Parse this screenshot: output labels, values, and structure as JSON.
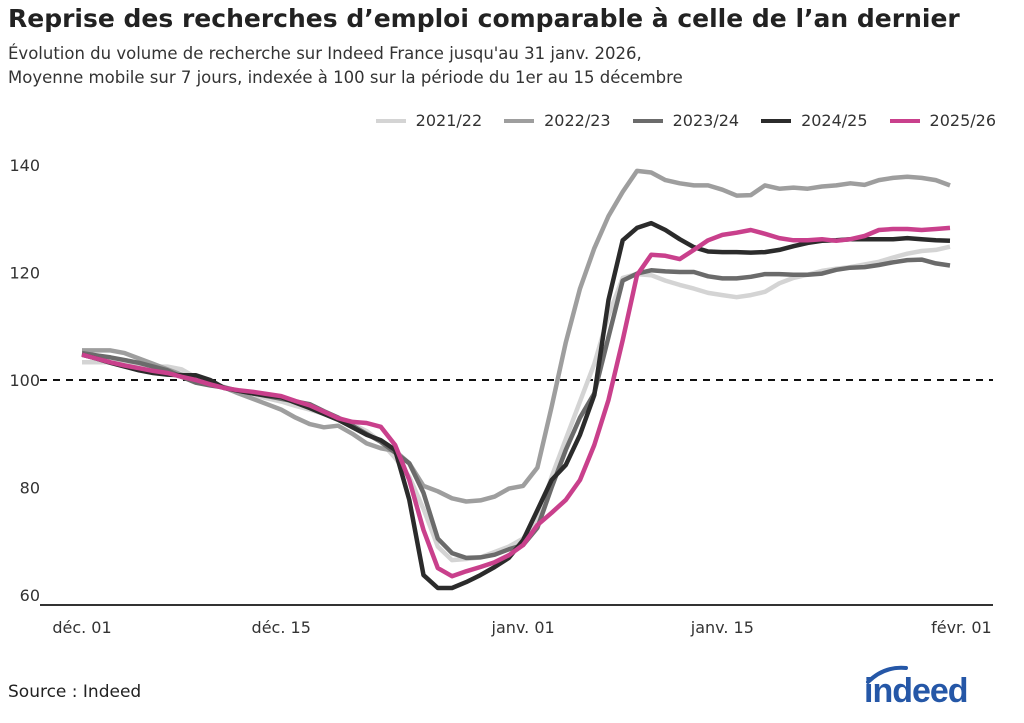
{
  "title": "Reprise des recherches d’emploi comparable à celle de l’an dernier",
  "subtitle_lines": [
    "Évolution du volume de recherche sur Indeed France jusqu'au 31 janv. 2026,",
    "Moyenne mobile sur 7 jours, indexée à 100 sur la période du 1er au 15 décembre"
  ],
  "source": "Source : Indeed",
  "logo_text": "indeed",
  "colors": {
    "brand": "#2557a7"
  },
  "chart_data": {
    "type": "line",
    "title": "Reprise des recherches d’emploi comparable à celle de l’an dernier",
    "xlabel": "",
    "ylabel": "",
    "ylim": [
      58,
      142
    ],
    "yticks": [
      60,
      80,
      100,
      120,
      140
    ],
    "ytick_labels": [
      "60",
      "80",
      "100",
      "120",
      "140"
    ],
    "xtick_labels": [
      "déc. 01",
      "déc. 15",
      "janv. 01",
      "janv. 15",
      "févr. 01"
    ],
    "xtick_dates": [
      "12-01",
      "12-15",
      "01-01",
      "01-15",
      "02-01"
    ],
    "reference_line": {
      "y": 100,
      "style": "dashed"
    },
    "grid": false,
    "legend_position": "top-right",
    "x": [
      "12-01",
      "12-02",
      "12-03",
      "12-04",
      "12-05",
      "12-06",
      "12-07",
      "12-08",
      "12-09",
      "12-10",
      "12-11",
      "12-12",
      "12-13",
      "12-14",
      "12-15",
      "12-16",
      "12-17",
      "12-18",
      "12-19",
      "12-20",
      "12-21",
      "12-22",
      "12-23",
      "12-24",
      "12-25",
      "12-26",
      "12-27",
      "12-28",
      "12-29",
      "12-30",
      "12-31",
      "01-01",
      "01-02",
      "01-03",
      "01-04",
      "01-05",
      "01-06",
      "01-07",
      "01-08",
      "01-09",
      "01-10",
      "01-11",
      "01-12",
      "01-13",
      "01-14",
      "01-15",
      "01-16",
      "01-17",
      "01-18",
      "01-19",
      "01-20",
      "01-21",
      "01-22",
      "01-23",
      "01-24",
      "01-25",
      "01-26",
      "01-27",
      "01-28",
      "01-29",
      "01-30",
      "01-31"
    ],
    "series": [
      {
        "name": "2021/22",
        "color": "#d4d4d4",
        "values": [
          103.3,
          103.3,
          103.3,
          103,
          102.6,
          102.5,
          102.5,
          102,
          100.5,
          99.6,
          98.7,
          97.9,
          97.2,
          96.6,
          96,
          95.2,
          94.5,
          93.7,
          93,
          91.8,
          90.5,
          88.5,
          85.5,
          82,
          76,
          69,
          66.5,
          66.7,
          67,
          68,
          69,
          70.5,
          74,
          82,
          89,
          96,
          103,
          112,
          119,
          119.7,
          119.5,
          118.5,
          117.7,
          117,
          116.2,
          115.8,
          115.4,
          115.8,
          116.4,
          118,
          119,
          119.6,
          120.3,
          120.7,
          121,
          121.5,
          122,
          122.8,
          123.5,
          124,
          124.2,
          124.8
        ]
      },
      {
        "name": "2022/23",
        "color": "#9e9e9e",
        "values": [
          105.5,
          105.5,
          105.5,
          105,
          104,
          103,
          102,
          101,
          100,
          99.3,
          98.6,
          97.5,
          96.5,
          95.5,
          94.5,
          93,
          91.8,
          91.2,
          91.5,
          90,
          88.2,
          87.3,
          86.8,
          84.5,
          80.3,
          79.3,
          78,
          77.4,
          77.6,
          78.3,
          79.8,
          80.3,
          83.7,
          95,
          107,
          117,
          124.5,
          130.5,
          135,
          138.9,
          138.6,
          137.2,
          136.6,
          136.2,
          136.2,
          135.4,
          134.3,
          134.4,
          136.2,
          135.6,
          135.8,
          135.6,
          136,
          136.2,
          136.6,
          136.3,
          137.2,
          137.6,
          137.8,
          137.6,
          137.2,
          136.2
        ]
      },
      {
        "name": "2023/24",
        "color": "#6b6b6b",
        "values": [
          105,
          104.6,
          104.2,
          103.7,
          103.2,
          102.5,
          101.8,
          100.6,
          99.5,
          99,
          98.6,
          98,
          97.5,
          97,
          96.5,
          96,
          95.5,
          94.2,
          93,
          91.5,
          90,
          88.5,
          86.5,
          84.5,
          79,
          70.5,
          67.8,
          66.9,
          67,
          67.5,
          68.5,
          69.3,
          72.5,
          80,
          87,
          93,
          97.5,
          108,
          118.5,
          119.8,
          120.4,
          120.2,
          120.1,
          120.1,
          119.3,
          118.9,
          118.9,
          119.2,
          119.7,
          119.7,
          119.6,
          119.6,
          119.8,
          120.5,
          120.9,
          121,
          121.4,
          121.9,
          122.3,
          122.4,
          121.7,
          121.3
        ]
      },
      {
        "name": "2024/25",
        "color": "#2b2b2b",
        "values": [
          104.7,
          104,
          103.2,
          102.5,
          101.8,
          101.3,
          101,
          100.9,
          100.9,
          100,
          98.5,
          98,
          97.5,
          97.1,
          96.8,
          95.8,
          94.8,
          93.7,
          92.6,
          91.2,
          89.8,
          88.8,
          87,
          77.7,
          63.7,
          61.3,
          61.3,
          62.4,
          63.7,
          65.2,
          66.9,
          70.2,
          75.8,
          81.4,
          84.2,
          89.8,
          97.2,
          114.9,
          126,
          128.3,
          129.2,
          127.9,
          126.2,
          124.7,
          123.9,
          123.8,
          123.8,
          123.7,
          123.8,
          124.2,
          124.9,
          125.5,
          125.9,
          126,
          126.2,
          126.2,
          126.2,
          126.2,
          126.4,
          126.2,
          126,
          125.9
        ]
      },
      {
        "name": "2025/26",
        "color": "#c9408c",
        "values": [
          104.7,
          104,
          103.3,
          102.7,
          102.2,
          101.7,
          101.3,
          100.6,
          100,
          99.2,
          98.5,
          98.1,
          97.8,
          97.4,
          97,
          96.1,
          95.3,
          94.1,
          92.9,
          92.2,
          92,
          91.3,
          87.9,
          81.4,
          72.1,
          65,
          63.5,
          64.4,
          65.2,
          66.1,
          67.4,
          69.3,
          73,
          75.3,
          77.7,
          81.4,
          87.9,
          96.3,
          107.4,
          119.5,
          123.3,
          123.1,
          122.5,
          124.2,
          126,
          127,
          127.4,
          127.9,
          127.2,
          126.4,
          126,
          126,
          126.2,
          125.9,
          126.2,
          126.8,
          127.9,
          128.1,
          128.1,
          127.9,
          128.1,
          128.3
        ]
      }
    ]
  }
}
